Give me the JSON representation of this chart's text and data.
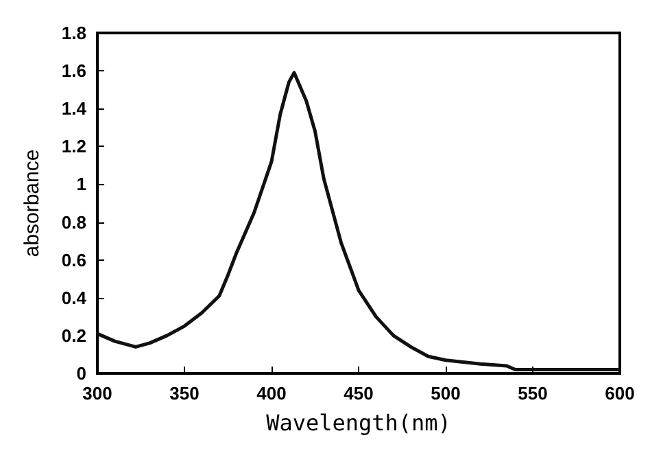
{
  "chart_data": {
    "type": "line",
    "xlabel": "Wavelength(nm)",
    "ylabel": "absorbance",
    "xlim": [
      300,
      600
    ],
    "xticks": [
      300,
      350,
      400,
      450,
      500,
      550,
      600
    ],
    "ylim": [
      0,
      1.8
    ],
    "yticks": [
      0,
      0.2,
      0.4,
      0.6,
      0.8,
      1,
      1.2,
      1.4,
      1.6,
      1.8
    ],
    "grid": false,
    "marker": "none",
    "line_style": "solid",
    "series": [
      {
        "color": "#111111",
        "x": [
          300,
          310,
          322,
          330,
          340,
          350,
          360,
          370,
          375,
          380,
          390,
          400,
          405,
          410,
          413,
          420,
          425,
          430,
          440,
          450,
          460,
          470,
          480,
          490,
          500,
          520,
          535,
          540,
          600
        ],
        "values": [
          0.21,
          0.17,
          0.14,
          0.16,
          0.2,
          0.25,
          0.32,
          0.41,
          0.52,
          0.64,
          0.85,
          1.12,
          1.37,
          1.54,
          1.59,
          1.44,
          1.28,
          1.03,
          0.69,
          0.44,
          0.3,
          0.2,
          0.14,
          0.09,
          0.07,
          0.05,
          0.04,
          0.02,
          0.02
        ]
      }
    ]
  }
}
